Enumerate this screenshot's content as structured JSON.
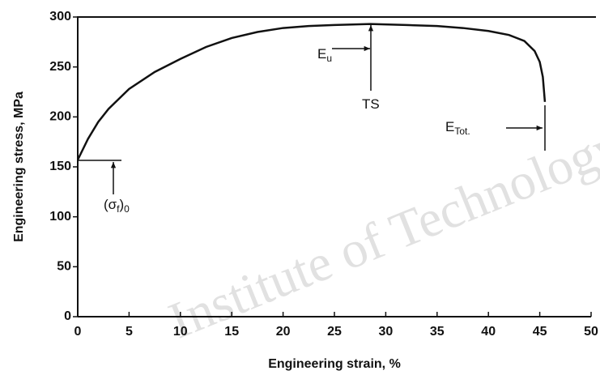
{
  "chart_data": {
    "type": "line",
    "watermark": "Institute of Technology",
    "x_label": "Engineering strain, %",
    "y_label": "Engineering stress, MPa",
    "x": [
      0,
      1,
      2,
      3,
      5,
      7.5,
      10,
      12.5,
      15,
      17.5,
      20,
      22.5,
      25,
      28.5,
      32,
      35,
      37.5,
      40,
      42,
      43.5,
      44.5,
      45,
      45.3,
      45.5
    ],
    "series": [
      {
        "color": "#111111",
        "values": [
          157,
          178,
          195,
          208,
          228,
          245,
          258,
          270,
          279,
          285,
          289,
          291,
          292,
          293,
          292,
          291,
          289,
          286,
          282,
          276,
          266,
          255,
          240,
          215
        ]
      }
    ],
    "xlim": [
      0,
      50
    ],
    "ylim": [
      0,
      300
    ],
    "xticks": [
      0,
      5,
      10,
      15,
      20,
      25,
      30,
      35,
      40,
      45,
      50
    ],
    "yticks": [
      0,
      50,
      100,
      150,
      200,
      250,
      300
    ],
    "annotations": [
      {
        "text": "E",
        "sub": "u"
      },
      {
        "text": "TS"
      },
      {
        "text": "E",
        "sub": "Tot."
      },
      {
        "text": "(σ",
        "sub": "f",
        "tail": ")",
        "sub2": "0"
      }
    ]
  }
}
